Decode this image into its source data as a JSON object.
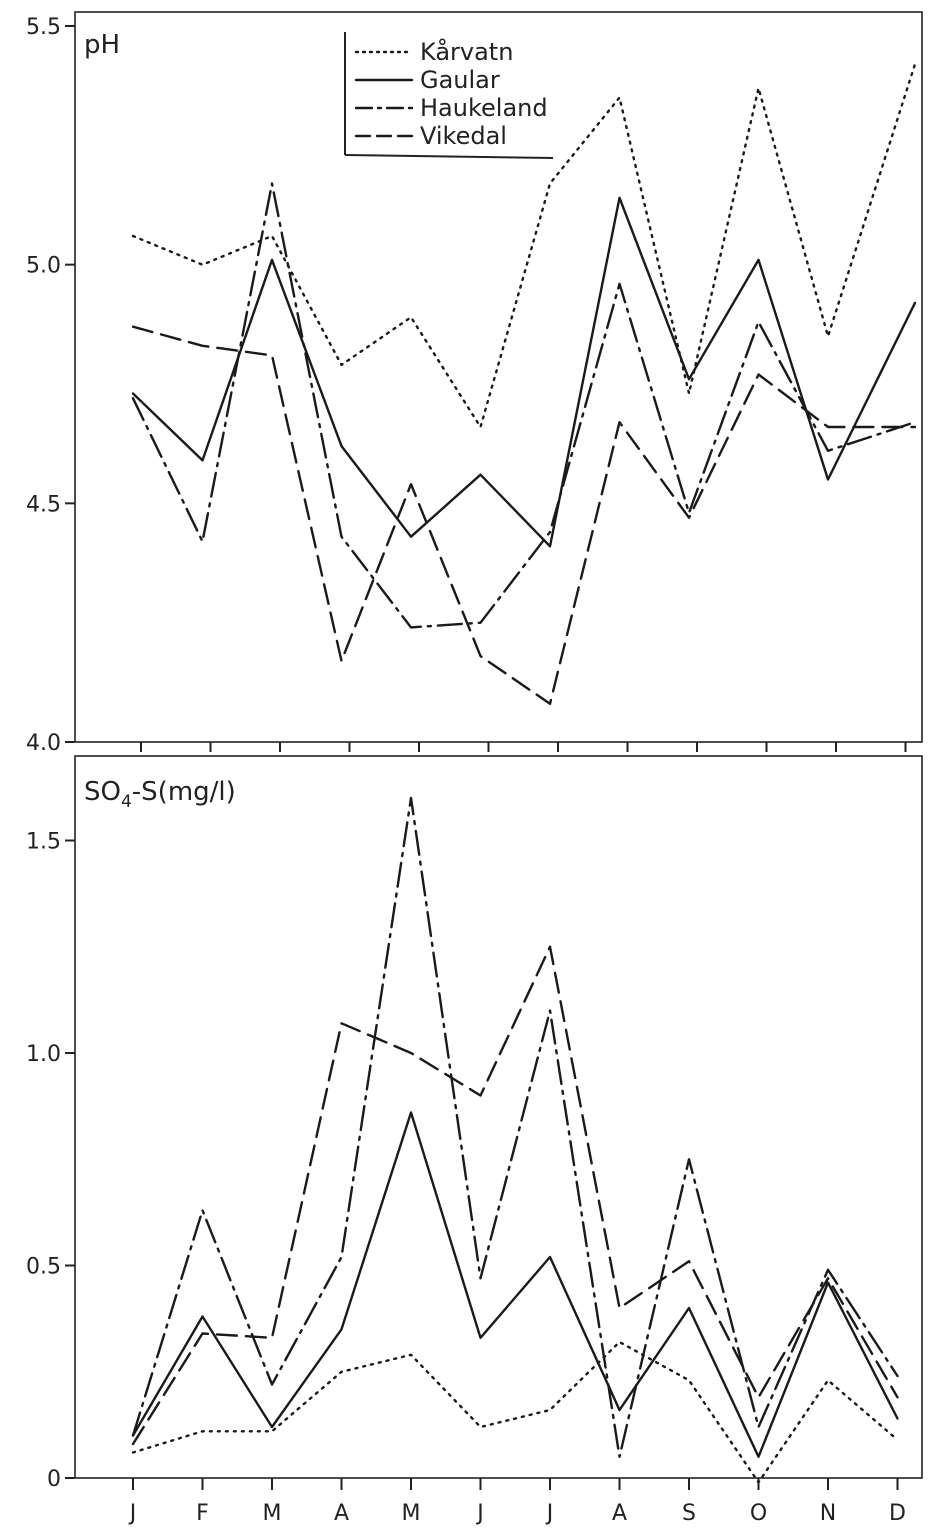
{
  "chart_data": [
    {
      "type": "line",
      "ylabel": "pH",
      "ylim": [
        4.0,
        5.5
      ],
      "yticks": [
        4.0,
        4.5,
        5.0,
        5.5
      ],
      "ytick_labels": [
        "4.0",
        "4.5",
        "5.0",
        "5.5"
      ],
      "x_count": 12,
      "x_end_value": 5.42,
      "grid": false,
      "legend": "top-center",
      "series": [
        {
          "name": "Kårvatn",
          "dash": "dotted",
          "values": [
            5.06,
            5.0,
            5.06,
            4.79,
            4.89,
            4.66,
            5.17,
            5.35,
            4.73,
            5.37,
            4.85,
            5.42
          ]
        },
        {
          "name": "Gaular",
          "dash": "solid",
          "values": [
            4.73,
            4.59,
            5.01,
            4.62,
            4.43,
            4.56,
            4.41,
            5.14,
            4.76,
            5.01,
            4.55,
            4.92
          ]
        },
        {
          "name": "Haukeland",
          "dash": "dashdot",
          "values": [
            4.72,
            4.42,
            5.17,
            4.43,
            4.24,
            4.25,
            4.44,
            4.96,
            4.48,
            4.88,
            4.61,
            4.67
          ]
        },
        {
          "name": "Vikedal",
          "dash": "dashed",
          "values": [
            4.87,
            4.83,
            4.81,
            4.17,
            4.54,
            4.18,
            4.08,
            4.67,
            4.47,
            4.77,
            4.66,
            4.66
          ]
        }
      ]
    },
    {
      "type": "line",
      "ylabel_prefix": "SO",
      "ylabel_sub": "4",
      "ylabel_suffix": "-S(mg/l)",
      "ylim": [
        0,
        1.6
      ],
      "yticks": [
        0,
        0.5,
        1.0,
        1.5
      ],
      "ytick_labels": [
        "0",
        "0.5",
        "1.0",
        "1.5"
      ],
      "categories": [
        "J",
        "F",
        "M",
        "A",
        "M",
        "J",
        "J",
        "A",
        "S",
        "O",
        "N",
        "D"
      ],
      "grid": false,
      "series": [
        {
          "name": "Kårvatn",
          "dash": "dotted",
          "values": [
            0.06,
            0.11,
            0.11,
            0.25,
            0.29,
            0.12,
            0.16,
            0.32,
            0.23,
            -0.01,
            0.23,
            0.09
          ]
        },
        {
          "name": "Gaular",
          "dash": "solid",
          "values": [
            0.1,
            0.38,
            0.12,
            0.35,
            0.86,
            0.33,
            0.52,
            0.16,
            0.4,
            0.05,
            0.46,
            0.14
          ]
        },
        {
          "name": "Haukeland",
          "dash": "dashdot",
          "values": [
            0.1,
            0.63,
            0.22,
            0.52,
            1.6,
            0.47,
            1.1,
            0.05,
            0.75,
            0.12,
            0.49,
            0.24
          ]
        },
        {
          "name": "Vikedal",
          "dash": "dashed",
          "values": [
            0.08,
            0.34,
            0.33,
            1.07,
            1.0,
            0.9,
            1.25,
            0.4,
            0.51,
            0.19,
            0.47,
            0.19
          ]
        }
      ]
    }
  ]
}
